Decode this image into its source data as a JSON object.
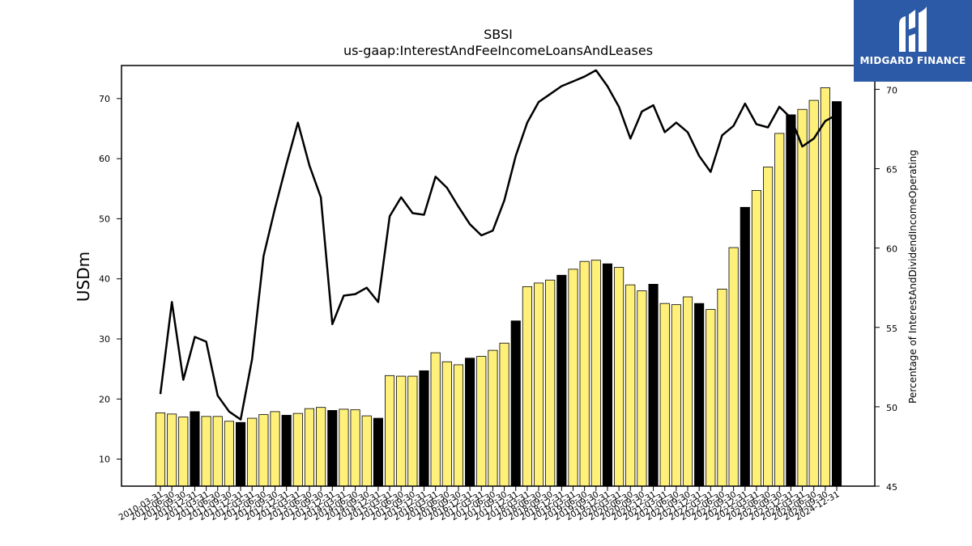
{
  "chart_data": {
    "type": "bar",
    "title": "SBSI",
    "subtitle": "us-gaap:InterestAndFeeIncomeLoansAndLeases",
    "ylabel": "USDm",
    "y2label": "Percentage of InterestAndDividendIncomeOperating",
    "ylim": [
      5.5,
      75.5
    ],
    "y2lim": [
      45,
      71.5
    ],
    "yticks": [
      10,
      20,
      30,
      40,
      50,
      60,
      70
    ],
    "y2ticks": [
      45,
      50,
      55,
      60,
      65,
      70
    ],
    "colors": {
      "bar_quarter": "#fff07a",
      "bar_year_end": "#000000",
      "bar_edge": "#000000",
      "line": "#000000"
    },
    "categories": [
      "2010-03-31",
      "2010-06-30",
      "2010-09-30",
      "2010-12-31",
      "2011-03-31",
      "2011-06-30",
      "2011-09-30",
      "2011-12-31",
      "2012-03-31",
      "2012-06-30",
      "2012-09-30",
      "2012-12-31",
      "2013-03-31",
      "2013-06-30",
      "2013-09-30",
      "2013-12-31",
      "2014-03-31",
      "2014-06-30",
      "2014-09-30",
      "2014-12-31",
      "2015-03-31",
      "2015-06-30",
      "2015-09-30",
      "2015-12-31",
      "2016-03-31",
      "2016-06-30",
      "2016-09-30",
      "2016-12-31",
      "2017-03-31",
      "2017-06-30",
      "2017-09-30",
      "2017-12-31",
      "2018-03-31",
      "2018-06-30",
      "2018-09-30",
      "2018-12-31",
      "2019-03-31",
      "2019-06-30",
      "2019-09-30",
      "2019-12-31",
      "2020-03-31",
      "2020-06-30",
      "2020-09-30",
      "2020-12-31",
      "2021-03-31",
      "2021-06-30",
      "2021-09-30",
      "2021-12-31",
      "2022-03-31",
      "2022-06-30",
      "2022-09-30",
      "2022-12-31",
      "2023-03-31",
      "2023-06-30",
      "2023-09-30",
      "2023-12-31",
      "2024-03-31",
      "2024-06-30",
      "2024-09-30",
      "2024-12-31"
    ],
    "xtick_labels": [
      "2010-03-31",
      "2010-06-30",
      "2010-09-30",
      "2010-12-31",
      "2011-03-31",
      "2011-06-30",
      "2011-09-30",
      "2011-12-31",
      "2012-03-31",
      "2012-06-30",
      "2012-09-30",
      "2012-12-31",
      "2013-03-31",
      "2013-06-30",
      "2013-09-30",
      "2013-12-31",
      "2014-03-31",
      "2014-06-30",
      "2014-09-30",
      "2014-12-31",
      "2015-03-31",
      "2015-06-30",
      "2015-09-30",
      "2015-12-31",
      "2016-03-31",
      "2016-06-30",
      "2016-09-30",
      "2016-12-31",
      "2017-03-31",
      "2017-06-30",
      "2017-09-30",
      "2017-12-31",
      "2018-03-31",
      "2018-06-30",
      "2018-09-30",
      "2018-12-31",
      "2019-03-31",
      "2019-06-30",
      "2019-09-30",
      "2019-12-31",
      "2020-03-31",
      "2020-06-30",
      "2020-09-30",
      "2020-12-31",
      "2021-03-31",
      "2021-06-30",
      "2021-09-30",
      "2021-12-31",
      "2022-03-31",
      "2022-06-30",
      "2022-09-30",
      "2022-12-31",
      "2023-03-31",
      "2023-06-30",
      "2023-09-30",
      "2023-12-31",
      "2024-03-31",
      "2024-06-30",
      "2024-09-30",
      "2024-12-31"
    ],
    "series": [
      {
        "values": [
          17.7,
          17.5,
          17.0,
          17.9,
          17.1,
          17.1,
          16.3,
          16.1,
          16.8,
          17.4,
          17.9,
          17.3,
          17.6,
          18.4,
          18.6,
          18.1,
          18.3,
          18.2,
          17.2,
          16.8,
          23.9,
          23.8,
          23.8,
          24.7,
          27.7,
          26.2,
          25.7,
          26.8,
          27.1,
          28.1,
          29.3,
          33.0,
          38.7,
          39.3,
          39.8,
          40.6,
          41.6,
          42.9,
          43.1,
          42.5,
          41.9,
          39.0,
          38.0,
          39.1,
          35.9,
          35.7,
          37.0,
          35.9,
          34.9,
          38.3,
          45.2,
          51.9,
          54.7,
          58.6,
          64.2,
          67.3,
          68.2,
          69.7,
          71.8,
          69.5
        ]
      },
      {
        "values": [
          50.8,
          56.6,
          51.7,
          54.4,
          54.1,
          50.7,
          49.7,
          49.2,
          53.0,
          59.5,
          62.5,
          65.3,
          67.9,
          65.2,
          63.2,
          55.2,
          57.0,
          57.1,
          57.5,
          56.6,
          62.0,
          63.2,
          62.2,
          62.1,
          64.5,
          63.8,
          62.6,
          61.5,
          60.8,
          61.1,
          63.0,
          65.8,
          67.9,
          69.2,
          69.7,
          70.2,
          70.5,
          70.8,
          71.2,
          70.2,
          68.9,
          66.9,
          68.6,
          69.0,
          67.3,
          67.9,
          67.3,
          65.8,
          64.8,
          67.1,
          67.7,
          69.1,
          67.8,
          67.6,
          68.9,
          68.2,
          66.4,
          66.9,
          68.0,
          68.4
        ]
      }
    ]
  },
  "logo": {
    "text": "MIDGARD FINANCE",
    "icon": "midgard-logo-icon"
  }
}
